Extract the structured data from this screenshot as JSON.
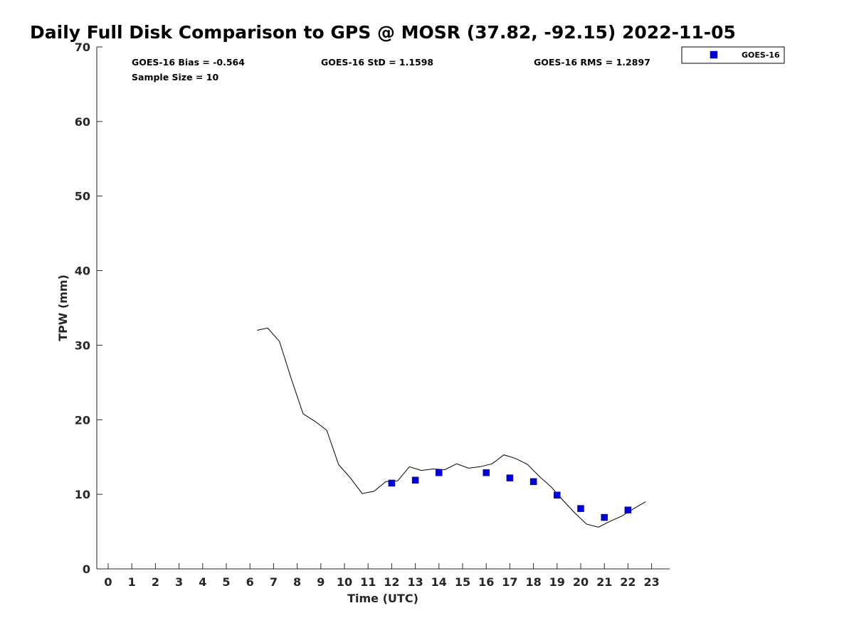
{
  "chart_data": {
    "type": "scatter",
    "title": "Daily Full Disk Comparison to GPS @ MOSR (37.82, -92.15) 2022-11-05",
    "xlabel": "Time (UTC)",
    "ylabel": "TPW (mm)",
    "xlim": [
      -0.5,
      23.8
    ],
    "ylim": [
      0,
      70
    ],
    "x_ticks": [
      0,
      1,
      2,
      3,
      4,
      5,
      6,
      7,
      8,
      9,
      10,
      11,
      12,
      13,
      14,
      15,
      16,
      17,
      18,
      19,
      20,
      21,
      22,
      23
    ],
    "y_ticks": [
      0,
      10,
      20,
      30,
      40,
      50,
      60,
      70
    ],
    "stats": {
      "bias": "GOES-16 Bias = -0.564",
      "std": "GOES-16 StD = 1.1598",
      "rms": "GOES-16 RMS = 1.2897",
      "sample": "Sample Size = 10"
    },
    "legend": {
      "entries": [
        "GOES-16"
      ],
      "position": "top-right-outside"
    },
    "series": [
      {
        "name": "GPS",
        "kind": "line",
        "color": "#000000",
        "x": [
          6.3,
          6.75,
          7.25,
          7.75,
          8.25,
          8.75,
          9.25,
          9.75,
          10.25,
          10.75,
          11.25,
          11.75,
          12.25,
          12.75,
          13.25,
          13.75,
          14.25,
          14.75,
          15.25,
          15.75,
          16.25,
          16.75,
          17.25,
          17.75,
          18.25,
          18.75,
          19.25,
          19.75,
          20.25,
          20.75,
          21.25,
          21.75,
          22.25,
          22.75
        ],
        "y": [
          32.0,
          32.3,
          30.5,
          25.5,
          20.8,
          19.8,
          18.6,
          14.0,
          12.2,
          10.1,
          10.4,
          11.7,
          11.8,
          13.7,
          13.2,
          13.4,
          13.3,
          14.1,
          13.5,
          13.7,
          14.1,
          15.3,
          14.8,
          14.0,
          12.4,
          11.0,
          9.2,
          7.5,
          6.0,
          5.6,
          6.4,
          7.1,
          8.1,
          9.0
        ]
      },
      {
        "name": "GOES-16",
        "kind": "scatter",
        "color": "#0000dd",
        "marker": "square",
        "x": [
          12,
          13,
          14,
          16,
          17,
          18,
          19,
          20,
          21,
          22
        ],
        "y": [
          11.5,
          11.9,
          12.9,
          12.9,
          12.2,
          11.7,
          9.9,
          8.1,
          6.9,
          7.9
        ]
      }
    ]
  }
}
